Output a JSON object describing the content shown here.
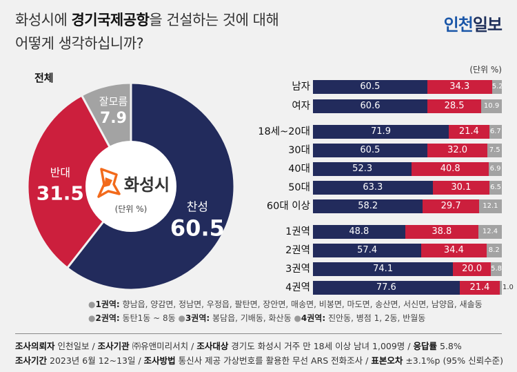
{
  "header": {
    "title_line1_pre": "화성시에 ",
    "title_line1_bold": "경기국제공항",
    "title_line1_post": "을 건설하는 것에 대해",
    "title_line2": "어떻게 생각하십니까?",
    "logo_part1": "인천",
    "logo_part2": "일보"
  },
  "overall_label": "전체",
  "unit_label": "(단위 %)",
  "pie_center": {
    "logo_text": "화성시",
    "unit": "(단위 %)"
  },
  "colors": {
    "approve": "#222b5c",
    "oppose": "#cc1f3d",
    "unsure": "#a3a3a3",
    "logo_orange": "#f26a1b"
  },
  "chart_data": [
    {
      "type": "pie",
      "title": "",
      "slices": [
        {
          "label": "찬성",
          "value": 60.5,
          "value_text": "60.5"
        },
        {
          "label": "반대",
          "value": 31.5,
          "value_text": "31.5"
        },
        {
          "label": "잘모름",
          "value": 7.9,
          "value_text": "7.9"
        }
      ]
    },
    {
      "type": "bar",
      "orientation": "horizontal",
      "stacked": true,
      "categories": [
        "남자",
        "여자",
        "18세~20대",
        "30대",
        "40대",
        "50대",
        "60대 이상",
        "1권역",
        "2권역",
        "3권역",
        "4권역"
      ],
      "series": [
        {
          "values": [
            60.5,
            60.6,
            71.9,
            60.5,
            52.3,
            63.3,
            58.2,
            48.8,
            57.4,
            74.1,
            77.6
          ],
          "labels": [
            "60.5",
            "60.6",
            "71.9",
            "60.5",
            "52.3",
            "63.3",
            "58.2",
            "48.8",
            "57.4",
            "74.1",
            "77.6"
          ]
        },
        {
          "values": [
            34.3,
            28.5,
            21.4,
            32.0,
            40.8,
            30.1,
            29.7,
            38.8,
            34.4,
            20.0,
            21.4
          ],
          "labels": [
            "34.3",
            "28.5",
            "21.4",
            "32.0",
            "40.8",
            "30.1",
            "29.7",
            "38.8",
            "34.4",
            "20.0",
            "21.4"
          ]
        },
        {
          "values": [
            5.2,
            10.9,
            6.7,
            7.5,
            6.9,
            6.5,
            12.1,
            12.4,
            8.2,
            5.8,
            1.0
          ],
          "labels": [
            "5.2",
            "10.9",
            "6.7",
            "7.5",
            "6.9",
            "6.5",
            "12.1",
            "12.4",
            "8.2",
            "5.8",
            "1.0"
          ]
        }
      ]
    }
  ],
  "footer": {
    "legend_line1": [
      {
        "key": "1권역:",
        "text": " 향남읍, 양감면, 정남면, 우정읍, 팔탄면, 장안면, 매송면, 비봉면, 마도면, 송산면, 서신면, 남양읍, 새솔동"
      }
    ],
    "legend_line2": [
      {
        "key": "2권역:",
        "text": " 동탄1동 ~ 8동"
      },
      {
        "key": "3권역:",
        "text": " 봉담읍, 기배동, 화산동"
      },
      {
        "key": "4권역:",
        "text": " 진안동, 병점 1, 2동, 반월동"
      }
    ],
    "source_line1": [
      {
        "key": "조사의뢰자",
        "text": " 인천일보 / "
      },
      {
        "key": "조사기관",
        "text": " ㈜유앤미리서치 / "
      },
      {
        "key": "조사대상",
        "text": " 경기도 화성시 거주 만 18세 이상 남녀 1,009명 / "
      },
      {
        "key": "응답률",
        "text": " 5.8%"
      }
    ],
    "source_line2": [
      {
        "key": "조사기간",
        "text": " 2023년 6월 12~13일 / "
      },
      {
        "key": "조사방법",
        "text": " 통신사 제공 가상번호를 활용한 무선 ARS 전화조사 / "
      },
      {
        "key": "표본오차",
        "text": " ±3.1%p (95% 신뢰수준)"
      }
    ]
  }
}
